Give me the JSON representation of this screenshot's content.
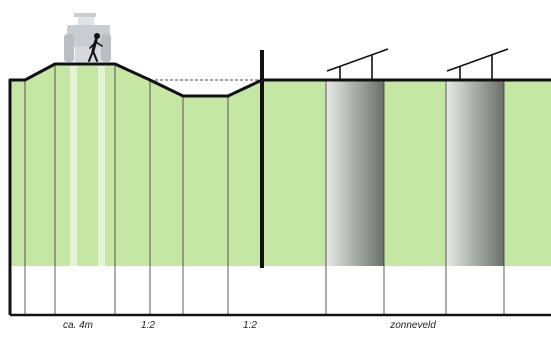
{
  "labels": {
    "berm_width": "ca. 4m",
    "slope_left": "1:2",
    "slope_right": "1:2",
    "solar_field": "zonneveld"
  },
  "icons": {
    "vehicle": "tractor-icon",
    "person": "walking-person-icon",
    "panel": "solar-panel-icon"
  },
  "colors": {
    "grass": "#c6e6a6",
    "ground": "#ffffff",
    "line": "#222222",
    "vehicle": "#c8cdd2",
    "shade_light": "#e6e8e6",
    "shade_dark": "#6e726e"
  }
}
